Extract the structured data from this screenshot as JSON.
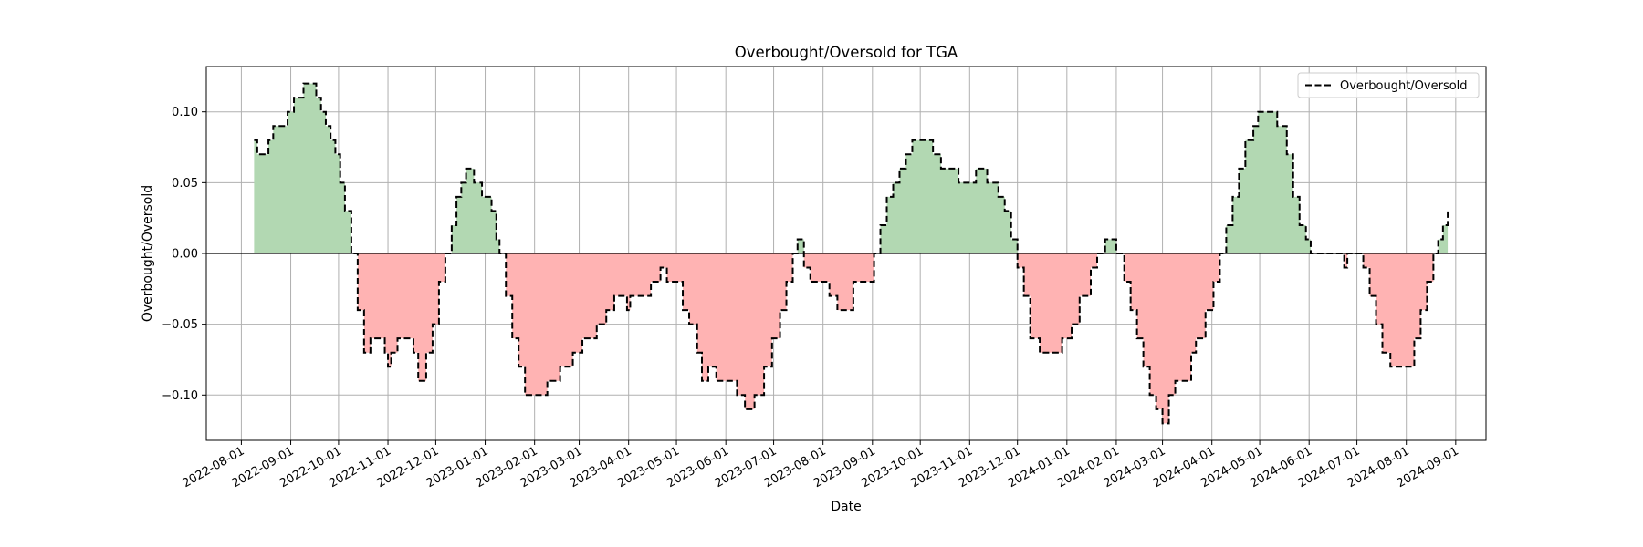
{
  "chart_data": {
    "type": "area",
    "title": "Overbought/Oversold for TGA",
    "xlabel": "Date",
    "ylabel": "Overbought/Oversold",
    "xlim": [
      "2022-07-10",
      "2024-09-20"
    ],
    "ylim": [
      -0.132,
      0.132
    ],
    "x_ticks": [
      "2022-08-01",
      "2022-09-01",
      "2022-10-01",
      "2022-11-01",
      "2022-12-01",
      "2023-01-01",
      "2023-02-01",
      "2023-03-01",
      "2023-04-01",
      "2023-05-01",
      "2023-06-01",
      "2023-07-01",
      "2023-08-01",
      "2023-09-01",
      "2023-10-01",
      "2023-11-01",
      "2023-12-01",
      "2024-01-01",
      "2024-02-01",
      "2024-03-01",
      "2024-04-01",
      "2024-05-01",
      "2024-06-01",
      "2024-07-01",
      "2024-08-01",
      "2024-09-01"
    ],
    "y_ticks": [
      -0.1,
      -0.05,
      0.0,
      0.05,
      0.1
    ],
    "y_tick_labels": [
      "−0.10",
      "−0.05",
      "0.00",
      "0.05",
      "0.10"
    ],
    "grid": true,
    "zero_line": 0,
    "fill_positive_color": "#b2d8b2",
    "fill_negative_color": "#ffb3b3",
    "line_color": "#000000",
    "line_style": "dashed",
    "legend": {
      "position": "top-right",
      "entries": [
        "Overbought/Oversold"
      ]
    },
    "series": [
      {
        "name": "Overbought/Oversold",
        "points": [
          [
            "2022-08-09",
            0.08
          ],
          [
            "2022-08-11",
            0.07
          ],
          [
            "2022-08-18",
            0.08
          ],
          [
            "2022-08-21",
            0.09
          ],
          [
            "2022-08-30",
            0.1
          ],
          [
            "2022-09-03",
            0.11
          ],
          [
            "2022-09-09",
            0.12
          ],
          [
            "2022-09-17",
            0.11
          ],
          [
            "2022-09-20",
            0.1
          ],
          [
            "2022-09-23",
            0.09
          ],
          [
            "2022-09-26",
            0.08
          ],
          [
            "2022-09-29",
            0.07
          ],
          [
            "2022-10-02",
            0.05
          ],
          [
            "2022-10-05",
            0.03
          ],
          [
            "2022-10-09",
            0.0
          ],
          [
            "2022-10-13",
            -0.04
          ],
          [
            "2022-10-17",
            -0.07
          ],
          [
            "2022-10-21",
            -0.06
          ],
          [
            "2022-10-30",
            -0.07
          ],
          [
            "2022-11-01",
            -0.08
          ],
          [
            "2022-11-03",
            -0.07
          ],
          [
            "2022-11-07",
            -0.06
          ],
          [
            "2022-11-17",
            -0.07
          ],
          [
            "2022-11-20",
            -0.09
          ],
          [
            "2022-11-25",
            -0.07
          ],
          [
            "2022-11-29",
            -0.05
          ],
          [
            "2022-12-03",
            -0.02
          ],
          [
            "2022-12-07",
            0.0
          ],
          [
            "2022-12-11",
            0.02
          ],
          [
            "2022-12-14",
            0.04
          ],
          [
            "2022-12-17",
            0.05
          ],
          [
            "2022-12-20",
            0.06
          ],
          [
            "2022-12-25",
            0.05
          ],
          [
            "2022-12-30",
            0.04
          ],
          [
            "2023-01-05",
            0.03
          ],
          [
            "2023-01-08",
            0.01
          ],
          [
            "2023-01-10",
            0.0
          ],
          [
            "2023-01-14",
            -0.03
          ],
          [
            "2023-01-18",
            -0.06
          ],
          [
            "2023-01-22",
            -0.08
          ],
          [
            "2023-01-26",
            -0.1
          ],
          [
            "2023-02-09",
            -0.09
          ],
          [
            "2023-02-17",
            -0.08
          ],
          [
            "2023-02-25",
            -0.07
          ],
          [
            "2023-03-03",
            -0.06
          ],
          [
            "2023-03-12",
            -0.05
          ],
          [
            "2023-03-18",
            -0.04
          ],
          [
            "2023-03-23",
            -0.03
          ],
          [
            "2023-03-31",
            -0.04
          ],
          [
            "2023-04-02",
            -0.03
          ],
          [
            "2023-04-15",
            -0.02
          ],
          [
            "2023-04-21",
            -0.01
          ],
          [
            "2023-04-25",
            -0.02
          ],
          [
            "2023-05-05",
            -0.04
          ],
          [
            "2023-05-09",
            -0.05
          ],
          [
            "2023-05-14",
            -0.07
          ],
          [
            "2023-05-17",
            -0.09
          ],
          [
            "2023-05-21",
            -0.08
          ],
          [
            "2023-05-26",
            -0.09
          ],
          [
            "2023-06-08",
            -0.1
          ],
          [
            "2023-06-13",
            -0.11
          ],
          [
            "2023-06-19",
            -0.1
          ],
          [
            "2023-06-25",
            -0.08
          ],
          [
            "2023-06-30",
            -0.06
          ],
          [
            "2023-07-05",
            -0.04
          ],
          [
            "2023-07-09",
            -0.02
          ],
          [
            "2023-07-13",
            0.0
          ],
          [
            "2023-07-16",
            0.01
          ],
          [
            "2023-07-20",
            -0.01
          ],
          [
            "2023-07-24",
            -0.02
          ],
          [
            "2023-08-05",
            -0.03
          ],
          [
            "2023-08-10",
            -0.04
          ],
          [
            "2023-08-20",
            -0.02
          ],
          [
            "2023-09-02",
            0.0
          ],
          [
            "2023-09-06",
            0.02
          ],
          [
            "2023-09-10",
            0.04
          ],
          [
            "2023-09-14",
            0.05
          ],
          [
            "2023-09-18",
            0.06
          ],
          [
            "2023-09-22",
            0.07
          ],
          [
            "2023-09-26",
            0.08
          ],
          [
            "2023-10-09",
            0.07
          ],
          [
            "2023-10-14",
            0.06
          ],
          [
            "2023-10-25",
            0.05
          ],
          [
            "2023-11-05",
            0.06
          ],
          [
            "2023-11-12",
            0.05
          ],
          [
            "2023-11-19",
            0.04
          ],
          [
            "2023-11-23",
            0.03
          ],
          [
            "2023-11-27",
            0.01
          ],
          [
            "2023-12-01",
            -0.01
          ],
          [
            "2023-12-05",
            -0.03
          ],
          [
            "2023-12-09",
            -0.06
          ],
          [
            "2023-12-15",
            -0.07
          ],
          [
            "2023-12-29",
            -0.06
          ],
          [
            "2024-01-04",
            -0.05
          ],
          [
            "2024-01-09",
            -0.03
          ],
          [
            "2024-01-16",
            -0.01
          ],
          [
            "2024-01-20",
            0.0
          ],
          [
            "2024-01-25",
            0.01
          ],
          [
            "2024-02-01",
            0.0
          ],
          [
            "2024-02-06",
            -0.02
          ],
          [
            "2024-02-10",
            -0.04
          ],
          [
            "2024-02-14",
            -0.06
          ],
          [
            "2024-02-18",
            -0.08
          ],
          [
            "2024-02-22",
            -0.1
          ],
          [
            "2024-02-26",
            -0.11
          ],
          [
            "2024-03-01",
            -0.12
          ],
          [
            "2024-03-05",
            -0.1
          ],
          [
            "2024-03-09",
            -0.09
          ],
          [
            "2024-03-19",
            -0.07
          ],
          [
            "2024-03-22",
            -0.06
          ],
          [
            "2024-03-28",
            -0.04
          ],
          [
            "2024-04-02",
            -0.02
          ],
          [
            "2024-04-06",
            0.0
          ],
          [
            "2024-04-10",
            0.02
          ],
          [
            "2024-04-14",
            0.04
          ],
          [
            "2024-04-18",
            0.06
          ],
          [
            "2024-04-22",
            0.08
          ],
          [
            "2024-04-27",
            0.09
          ],
          [
            "2024-04-30",
            0.1
          ],
          [
            "2024-05-12",
            0.09
          ],
          [
            "2024-05-18",
            0.07
          ],
          [
            "2024-05-22",
            0.04
          ],
          [
            "2024-05-26",
            0.02
          ],
          [
            "2024-05-30",
            0.01
          ],
          [
            "2024-06-02",
            0.0
          ],
          [
            "2024-06-21",
            0.0
          ],
          [
            "2024-06-23",
            -0.01
          ],
          [
            "2024-06-25",
            0.0
          ],
          [
            "2024-07-05",
            -0.01
          ],
          [
            "2024-07-09",
            -0.03
          ],
          [
            "2024-07-13",
            -0.05
          ],
          [
            "2024-07-17",
            -0.07
          ],
          [
            "2024-07-22",
            -0.08
          ],
          [
            "2024-08-06",
            -0.06
          ],
          [
            "2024-08-10",
            -0.04
          ],
          [
            "2024-08-14",
            -0.02
          ],
          [
            "2024-08-18",
            0.0
          ],
          [
            "2024-08-21",
            0.01
          ],
          [
            "2024-08-24",
            0.02
          ],
          [
            "2024-08-27",
            0.03
          ]
        ]
      }
    ]
  }
}
